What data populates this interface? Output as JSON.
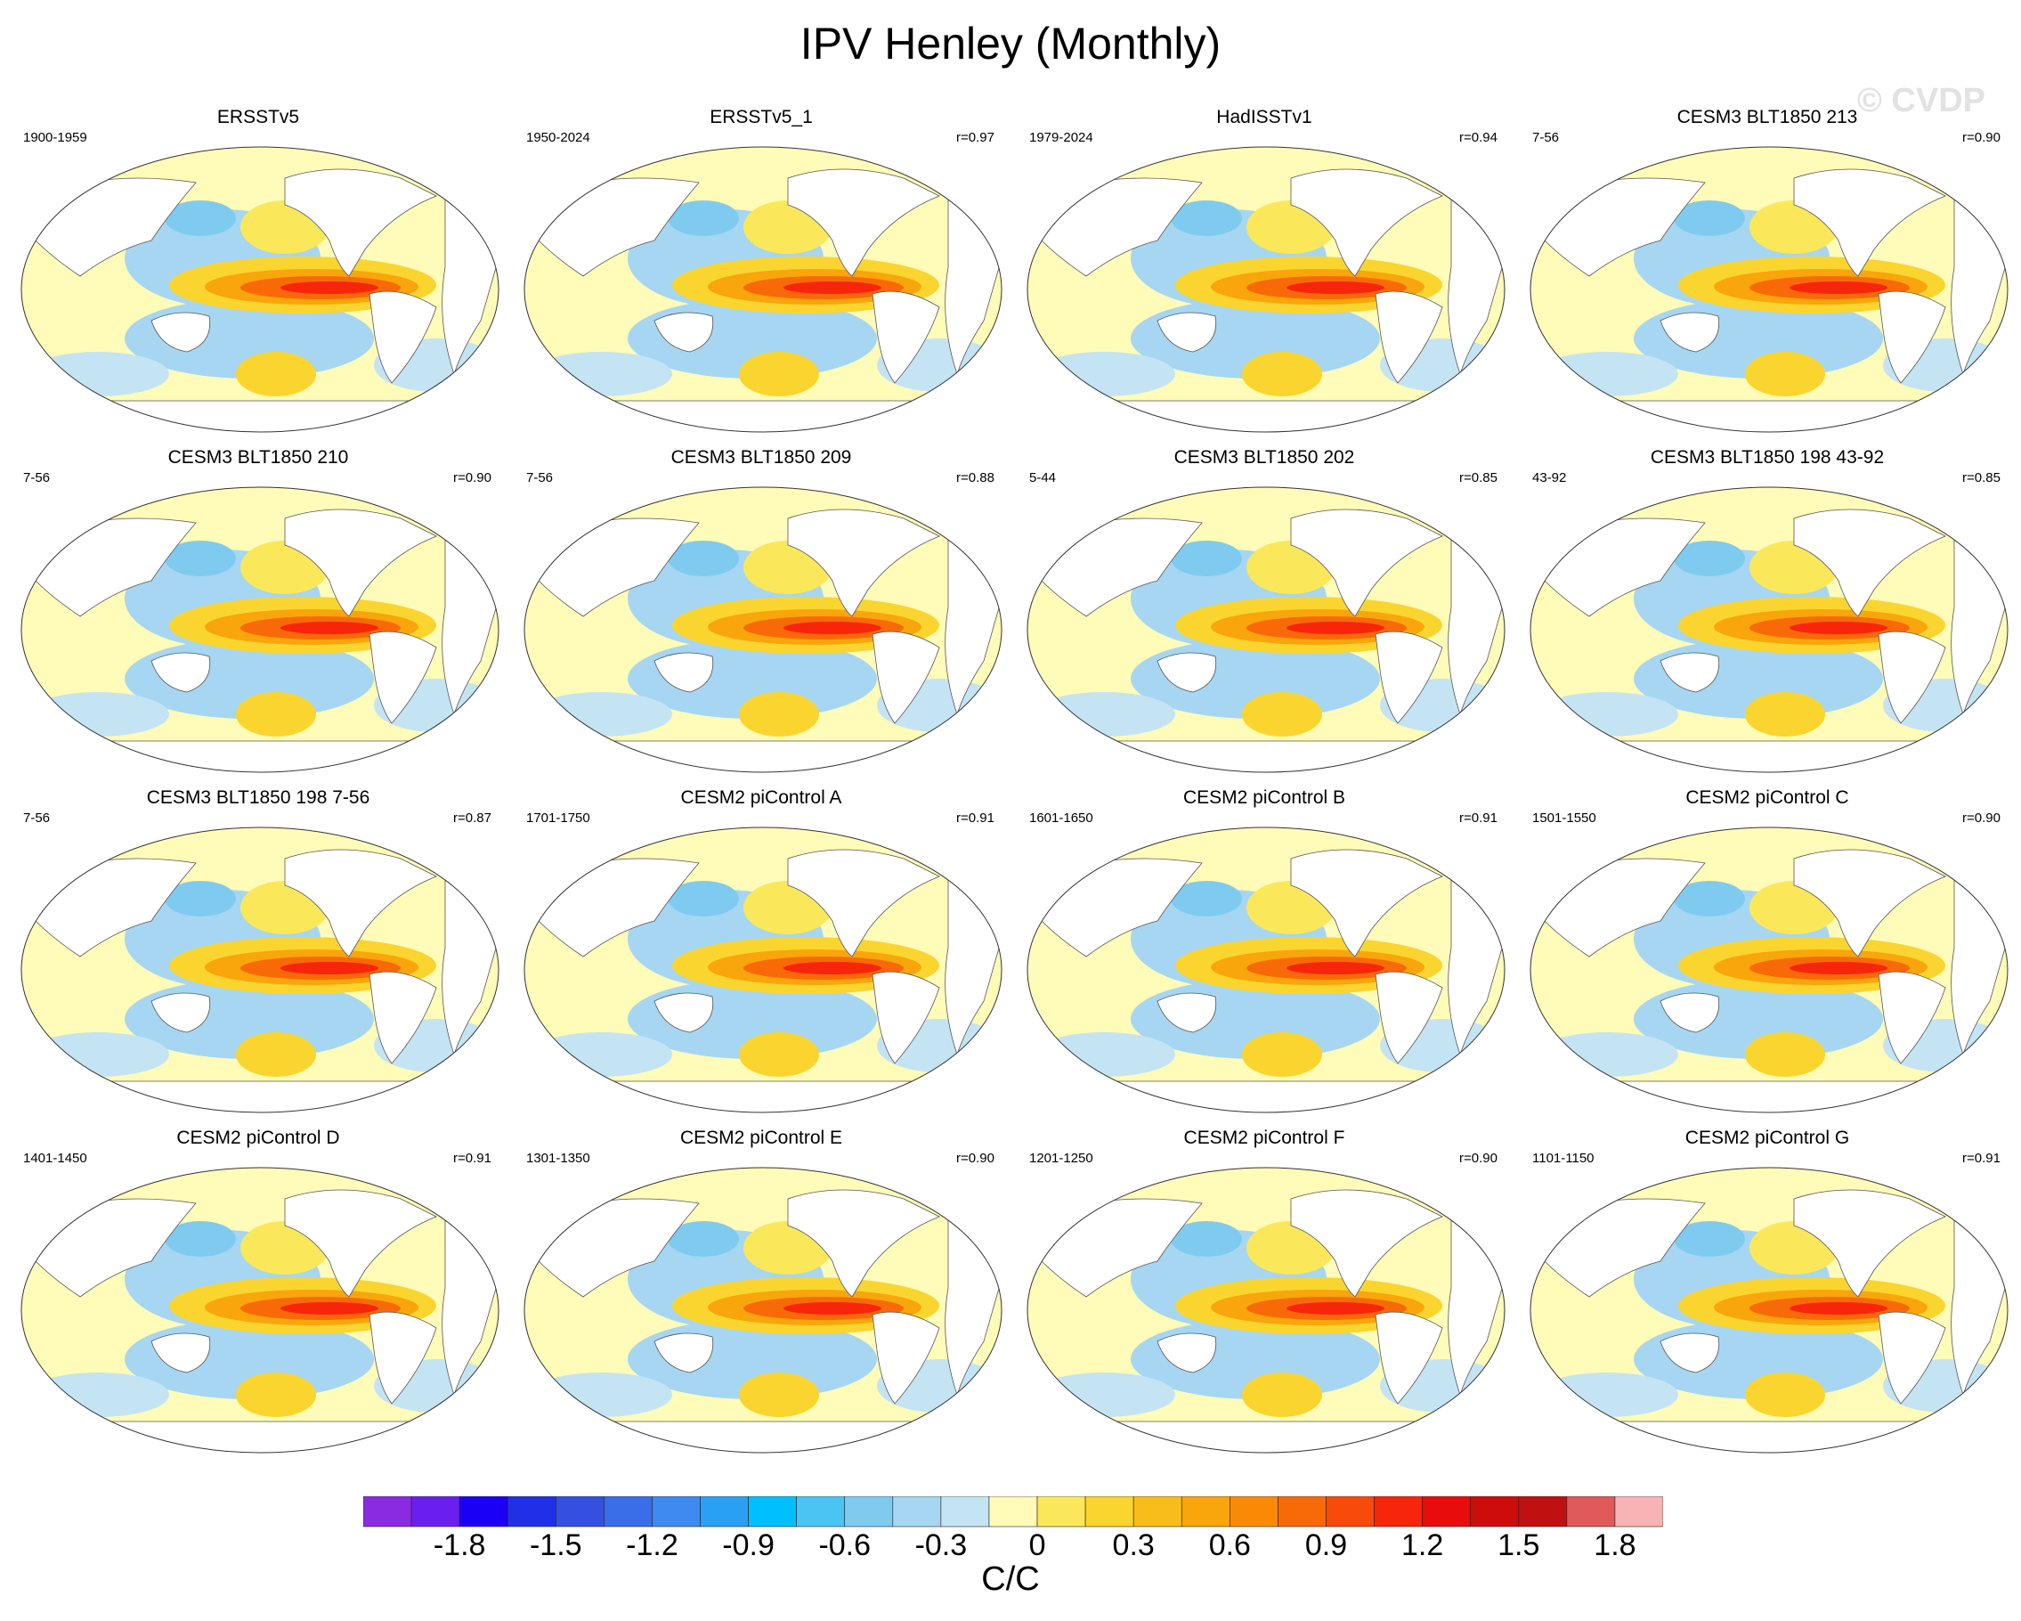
{
  "title": "IPV Henley (Monthly)",
  "watermark": "© CVDP",
  "panels": [
    {
      "name": "ERSSTv5",
      "period": "1900-1959",
      "corr": ""
    },
    {
      "name": "ERSSTv5_1",
      "period": "1950-2024",
      "corr": "r=0.97"
    },
    {
      "name": "HadISSTv1",
      "period": "1979-2024",
      "corr": "r=0.94"
    },
    {
      "name": "CESM3 BLT1850 213",
      "period": "7-56",
      "corr": "r=0.90"
    },
    {
      "name": "CESM3 BLT1850 210",
      "period": "7-56",
      "corr": "r=0.90"
    },
    {
      "name": "CESM3 BLT1850 209",
      "period": "7-56",
      "corr": "r=0.88"
    },
    {
      "name": "CESM3 BLT1850 202",
      "period": "5-44",
      "corr": "r=0.85"
    },
    {
      "name": "CESM3 BLT1850 198 43-92",
      "period": "43-92",
      "corr": "r=0.85"
    },
    {
      "name": "CESM3 BLT1850 198 7-56",
      "period": "7-56",
      "corr": "r=0.87"
    },
    {
      "name": "CESM2 piControl A",
      "period": "1701-1750",
      "corr": "r=0.91"
    },
    {
      "name": "CESM2 piControl B",
      "period": "1601-1650",
      "corr": "r=0.91"
    },
    {
      "name": "CESM2 piControl C",
      "period": "1501-1550",
      "corr": "r=0.90"
    },
    {
      "name": "CESM2 piControl D",
      "period": "1401-1450",
      "corr": "r=0.91"
    },
    {
      "name": "CESM2 piControl E",
      "period": "1301-1350",
      "corr": "r=0.90"
    },
    {
      "name": "CESM2 piControl F",
      "period": "1201-1250",
      "corr": "r=0.90"
    },
    {
      "name": "CESM2 piControl G",
      "period": "1101-1150",
      "corr": "r=0.91"
    }
  ],
  "colorbar": {
    "colors": [
      "#8a2be2",
      "#6a1ff0",
      "#1a00f5",
      "#2030e6",
      "#3550e0",
      "#3a6de8",
      "#3f8af0",
      "#2aa0f5",
      "#00bfff",
      "#4ac4f2",
      "#7fcbef",
      "#a6d6f2",
      "#c4e4f4",
      "#fffbb8",
      "#fbe85a",
      "#fad52f",
      "#f8bd1a",
      "#f9a50c",
      "#fa8a06",
      "#f86a08",
      "#f84a0a",
      "#f7250a",
      "#e80c0c",
      "#cf0c0c",
      "#c01010",
      "#e05a5a",
      "#f8b4b4"
    ],
    "tick_labels": [
      "-1.8",
      "-1.5",
      "-1.2",
      "-0.9",
      "-0.6",
      "-0.3",
      "0",
      "0.3",
      "0.6",
      "0.9",
      "1.2",
      "1.5",
      "1.8"
    ],
    "unit": "C/C"
  }
}
